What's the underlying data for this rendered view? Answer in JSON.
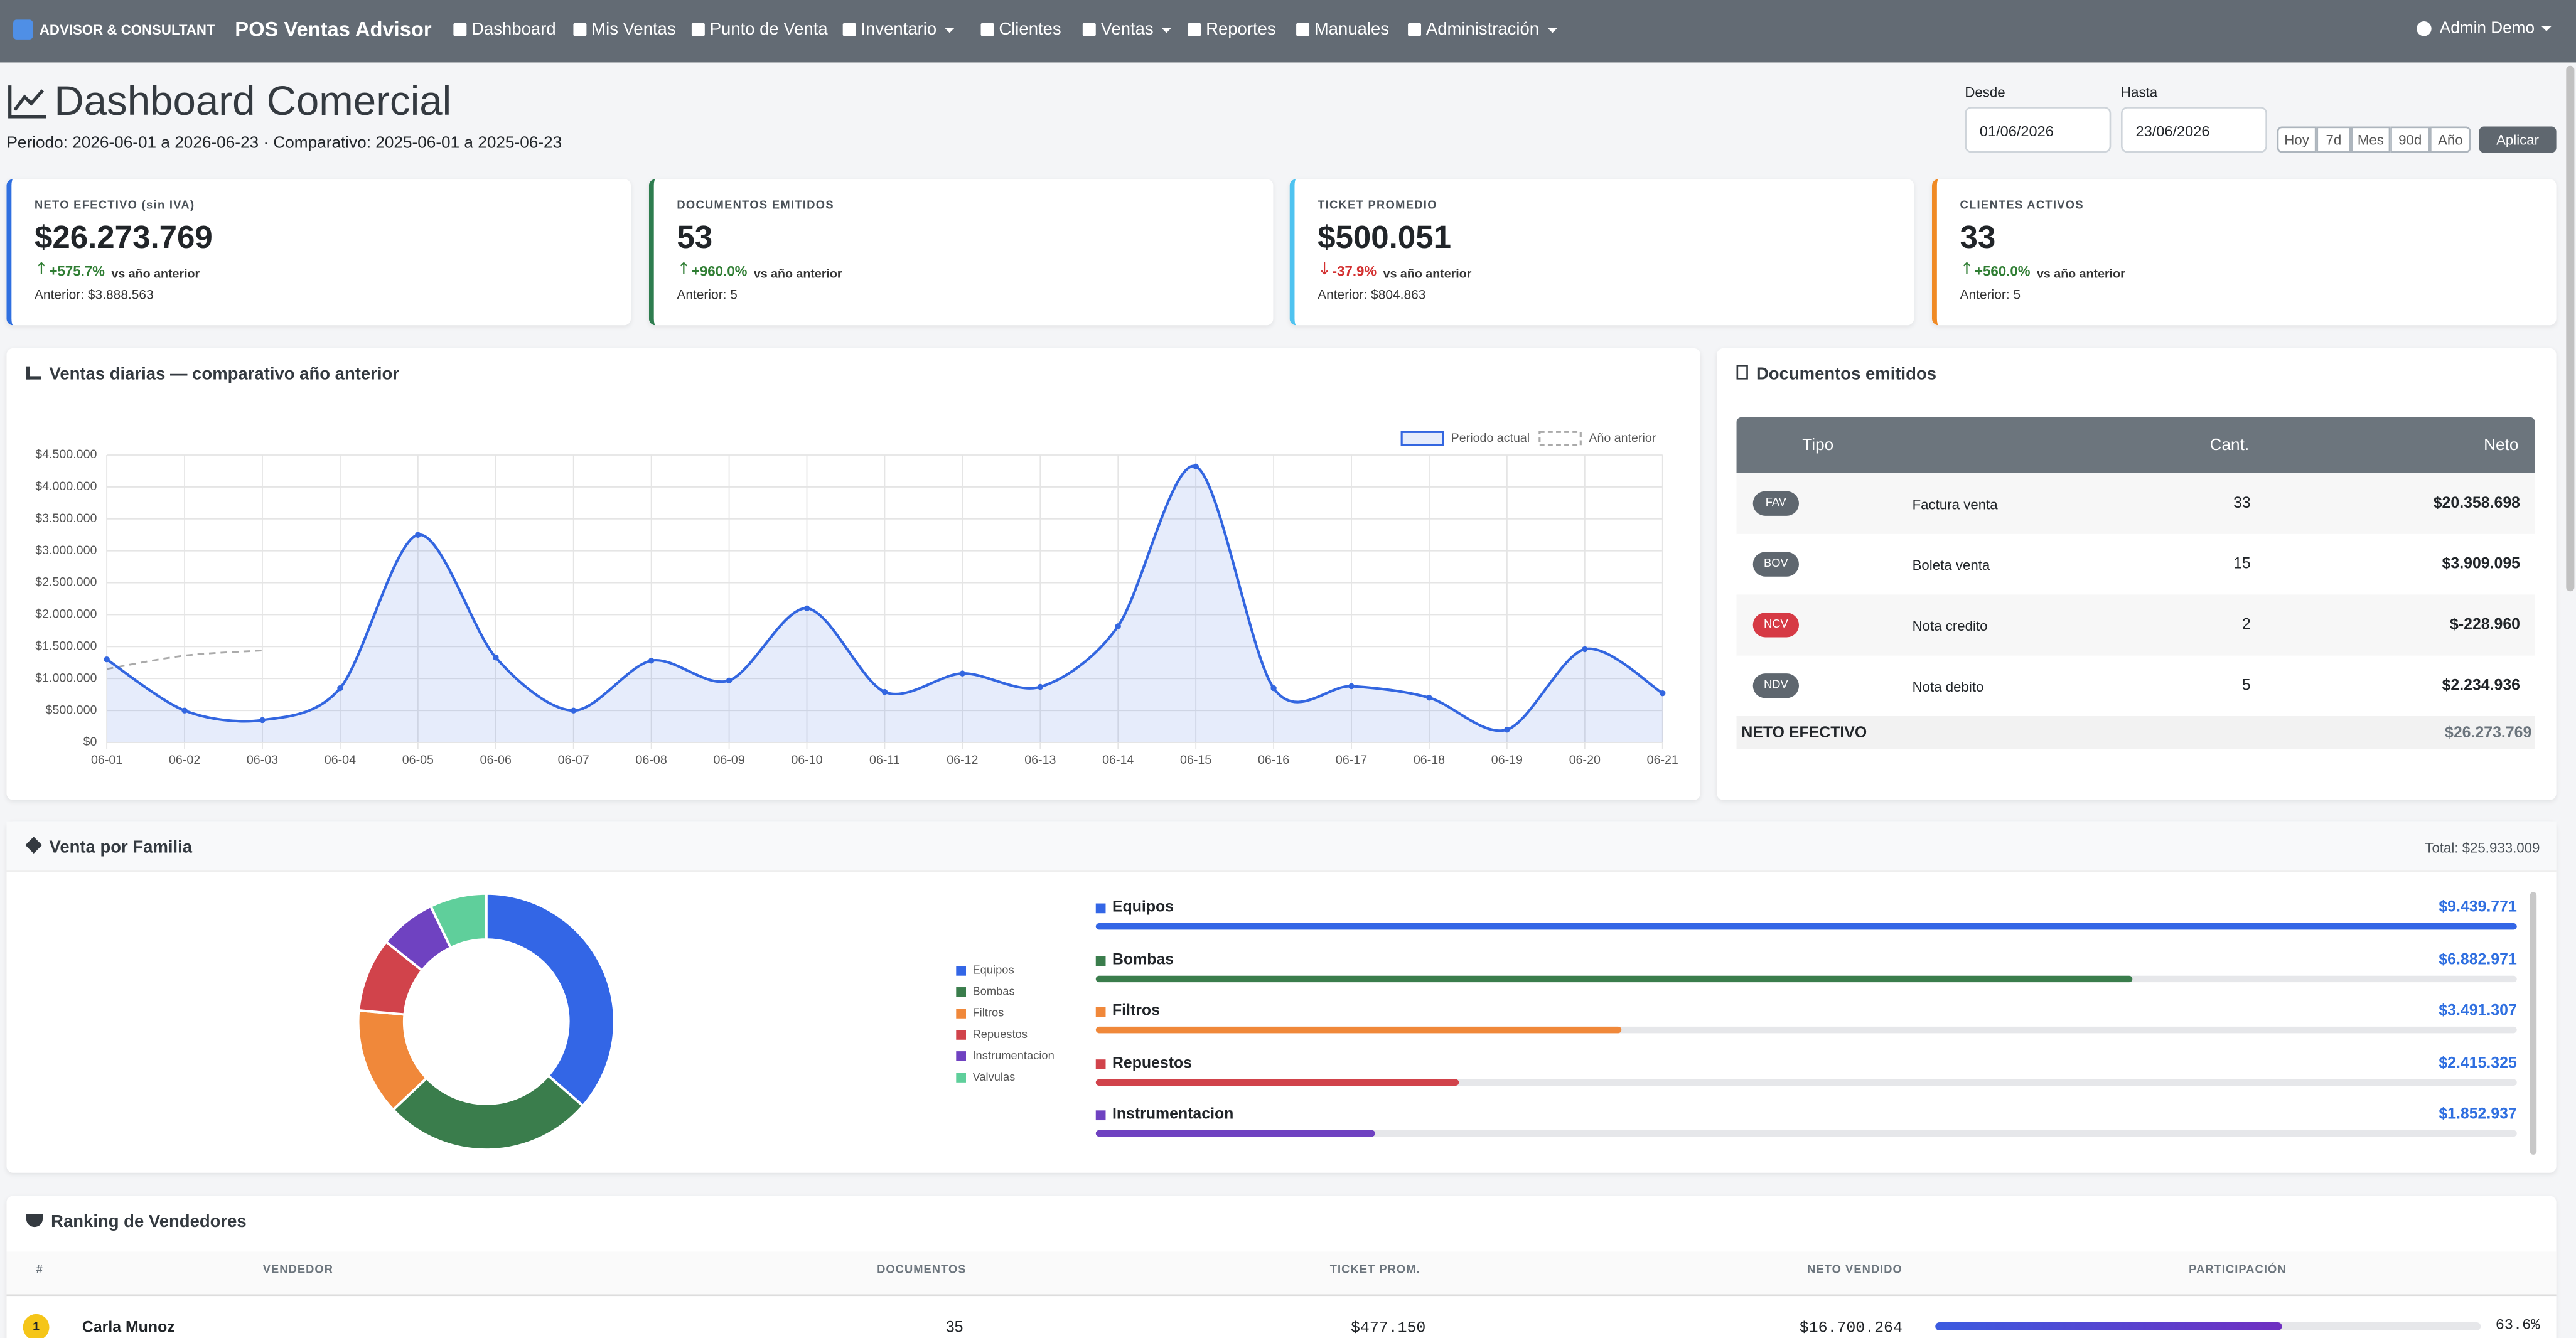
{
  "nav": {
    "brand": "ADVISOR & CONSULTANT",
    "app": "POS Ventas Advisor",
    "items": [
      "Dashboard",
      "Mis Ventas",
      "Punto de Venta",
      "Inventario",
      "Clientes",
      "Ventas",
      "Reportes",
      "Manuales",
      "Administración"
    ],
    "dropdowns": [
      false,
      false,
      false,
      true,
      false,
      true,
      false,
      false,
      true
    ],
    "user": "Admin Demo"
  },
  "header": {
    "title": "Dashboard Comercial",
    "period": "Periodo: 2026-06-01 a 2026-06-23 · Comparativo: 2025-06-01 a 2025-06-23"
  },
  "filters": {
    "from_label": "Desde",
    "from": "01/06/2026",
    "to_label": "Hasta",
    "to": "23/06/2026",
    "ranges": [
      "Hoy",
      "7d",
      "Mes",
      "90d",
      "Año"
    ],
    "apply": "Aplicar"
  },
  "kpis": [
    {
      "label": "NETO EFECTIVO (sin IVA)",
      "value": "$26.273.769",
      "change": "+575.7%",
      "trend": "up",
      "vs": "vs año anterior",
      "previous": "Anterior: $3.888.563",
      "color": "#2f6fe0"
    },
    {
      "label": "DOCUMENTOS EMITIDOS",
      "value": "53",
      "change": "+960.0%",
      "trend": "up",
      "vs": "vs año anterior",
      "previous": "Anterior: 5",
      "color": "#2e7d4f"
    },
    {
      "label": "TICKET PROMEDIO",
      "value": "$500.051",
      "change": "-37.9%",
      "trend": "down",
      "vs": "vs año anterior",
      "previous": "Anterior: $804.863",
      "color": "#4fc3f0"
    },
    {
      "label": "CLIENTES ACTIVOS",
      "value": "33",
      "change": "+560.0%",
      "trend": "up",
      "vs": "vs año anterior",
      "previous": "Anterior: 5",
      "color": "#f08a24"
    }
  ],
  "chart_data": [
    {
      "type": "line",
      "title": "Ventas diarias — comparativo año anterior",
      "categories": [
        "06-01",
        "06-02",
        "06-03",
        "06-04",
        "06-05",
        "06-06",
        "06-07",
        "06-08",
        "06-09",
        "06-10",
        "06-11",
        "06-12",
        "06-13",
        "06-14",
        "06-15",
        "06-16",
        "06-17",
        "06-18",
        "06-19",
        "06-20",
        "06-21"
      ],
      "series": [
        {
          "name": "Periodo actual",
          "color": "#3366e0",
          "values": [
            1300000,
            500000,
            350000,
            850000,
            3250000,
            1330000,
            500000,
            1280000,
            970000,
            2100000,
            790000,
            1080000,
            870000,
            1820000,
            4320000,
            850000,
            880000,
            700000,
            200000,
            1460000,
            770000
          ]
        },
        {
          "name": "Año anterior",
          "color": "#aaaaaa",
          "dashed": true,
          "values": [
            1150000,
            1360000,
            1440000,
            null,
            null,
            null,
            null,
            null,
            null,
            null,
            null,
            null,
            null,
            null,
            null,
            null,
            null,
            null,
            null,
            null,
            null
          ]
        }
      ],
      "ylim": [
        0,
        4500000
      ],
      "yticks": [
        {
          "value": 0,
          "label": "$0"
        },
        {
          "value": 500000,
          "label": "$500.000"
        },
        {
          "value": 1000000,
          "label": "$1.000.000"
        },
        {
          "value": 1500000,
          "label": "$1.500.000"
        },
        {
          "value": 2000000,
          "label": "$2.000.000"
        },
        {
          "value": 2500000,
          "label": "$2.500.000"
        },
        {
          "value": 3000000,
          "label": "$3.000.000"
        },
        {
          "value": 3500000,
          "label": "$3.500.000"
        },
        {
          "value": 4000000,
          "label": "$4.000.000"
        },
        {
          "value": 4500000,
          "label": "$4.500.000"
        }
      ],
      "grid": true,
      "legend": "top-right"
    },
    {
      "type": "donut",
      "title": "Venta por Familia",
      "total": "Total: $25.933.009",
      "categories": [
        "Equipos",
        "Bombas",
        "Filtros",
        "Repuestos",
        "Instrumentacion",
        "Valvulas"
      ],
      "values": [
        9439771,
        6882971,
        3491307,
        2415325,
        1852937,
        1850698
      ],
      "value_labels": [
        "$9.439.771",
        "$6.882.971",
        "$3.491.307",
        "$2.415.325",
        "$1.852.937",
        null
      ],
      "colors": [
        "#3366e6",
        "#3a7d4c",
        "#f0883a",
        "#d1434b",
        "#6f42c1",
        "#5fcf9b"
      ],
      "legend": "left"
    }
  ],
  "documents": {
    "title": "Documentos emitidos",
    "columns": [
      "Tipo",
      "Cant.",
      "Neto"
    ],
    "rows": [
      {
        "code": "FAV",
        "name": "Factura venta",
        "count": "33",
        "net": "$20.358.698",
        "badge": "#5f676f"
      },
      {
        "code": "BOV",
        "name": "Boleta venta",
        "count": "15",
        "net": "$3.909.095",
        "badge": "#5f676f"
      },
      {
        "code": "NCV",
        "name": "Nota credito",
        "count": "2",
        "net": "$-228.960",
        "badge": "#d63a45"
      },
      {
        "code": "NDV",
        "name": "Nota debito",
        "count": "5",
        "net": "$2.234.936",
        "badge": "#5f676f"
      }
    ],
    "total_label": "NETO EFECTIVO",
    "total": "$26.273.769"
  },
  "ranking": {
    "title": "Ranking de Vendedores",
    "columns": [
      "#",
      "VENDEDOR",
      "DOCUMENTOS",
      "TICKET PROM.",
      "NETO VENDIDO",
      "PARTICIPACIÓN"
    ],
    "rows": [
      {
        "rank": "1",
        "name": "Carla Munoz",
        "documents": "35",
        "ticket": "$477.150",
        "net": "$16.700.264",
        "share": 63.6,
        "share_label": "63.6%"
      }
    ]
  }
}
